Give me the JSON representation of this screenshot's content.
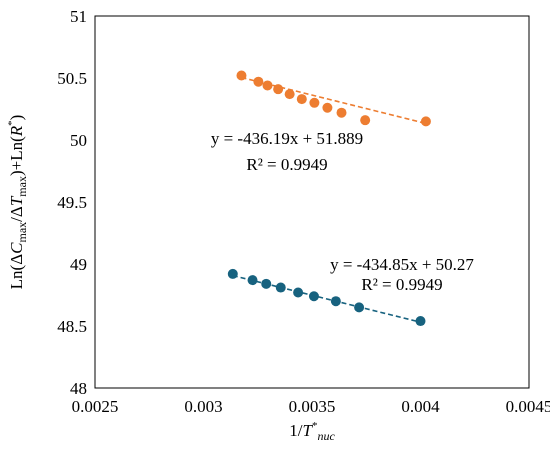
{
  "chart_data": {
    "type": "scatter",
    "xlabel": "1/T*nuc",
    "ylabel": "Ln(ΔCmax/ΔTmax)+Ln(R*)",
    "xlim": [
      0.0025,
      0.0045
    ],
    "ylim": [
      48,
      51
    ],
    "x_ticks": [
      "0.0025",
      "0.003",
      "0.0035",
      "0.004",
      "0.0045"
    ],
    "y_ticks": [
      "48",
      "48.5",
      "49",
      "49.5",
      "50",
      "50.5",
      "51"
    ],
    "grid": false,
    "legend": "none",
    "series": [
      {
        "color": "#ED7D31",
        "x": [
          0.003175,
          0.003253,
          0.003295,
          0.003344,
          0.003397,
          0.003453,
          0.003511,
          0.003571,
          0.003636,
          0.003745,
          0.004025
        ],
        "y": [
          50.52,
          50.47,
          50.44,
          50.41,
          50.37,
          50.33,
          50.3,
          50.26,
          50.22,
          50.16,
          50.15
        ],
        "show_points": [
          0,
          1,
          2,
          3,
          4,
          5,
          6,
          7,
          8,
          9,
          10
        ],
        "trendline": {
          "slope": -436.19,
          "intercept": 51.889,
          "x_range": [
            0.003175,
            0.004025
          ]
        },
        "equation": "y = -436.19x + 51.889",
        "r2": "R² = 0.9949"
      },
      {
        "color": "#17627F",
        "x": [
          0.003135,
          0.003226,
          0.003289,
          0.003356,
          0.003436,
          0.003509,
          0.00361,
          0.003717,
          0.004
        ],
        "y": [
          48.92,
          48.87,
          48.84,
          48.81,
          48.77,
          48.74,
          48.7,
          48.65,
          48.54
        ],
        "trendline": {
          "slope": -434.85,
          "intercept": 50.27,
          "x_range": [
            0.003135,
            0.004
          ]
        },
        "equation": "y = -434.85x + 50.27",
        "r2": "R² = 0.9949"
      }
    ]
  }
}
